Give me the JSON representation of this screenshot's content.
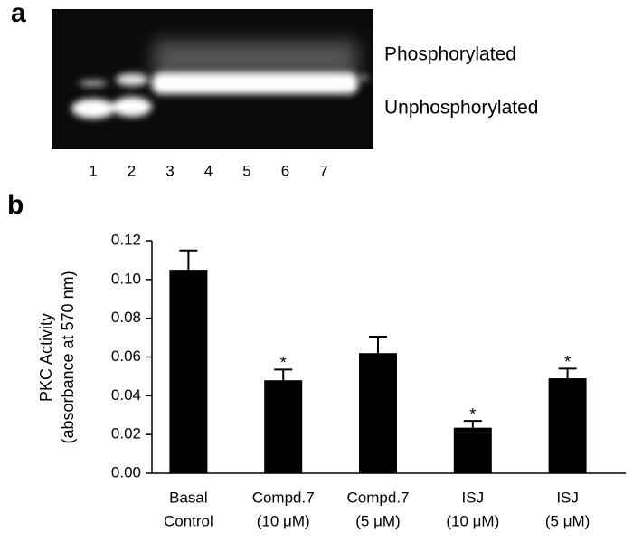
{
  "panel_labels": [
    "a",
    "b"
  ],
  "gel": {
    "band_labels": [
      "Phosphorylated",
      "Unphosphorylated"
    ],
    "lanes": [
      "1",
      "2",
      "3",
      "4",
      "5",
      "6",
      "7"
    ]
  },
  "chart_data": {
    "type": "bar",
    "ylabel": [
      "PKC Activity",
      "(absorbance at 570 nm)"
    ],
    "categories": [
      [
        "Basal",
        "Control"
      ],
      [
        "Compd.7",
        "(10 μM)"
      ],
      [
        "Compd.7",
        "(5 μM)"
      ],
      [
        "ISJ",
        "(10 μM)"
      ],
      [
        "ISJ",
        "(5 μM)"
      ]
    ],
    "values": [
      0.105,
      0.048,
      0.062,
      0.0235,
      0.049
    ],
    "errors": [
      0.01,
      0.0055,
      0.0085,
      0.0035,
      0.005
    ],
    "significance": [
      null,
      "*",
      null,
      "*",
      "*"
    ],
    "color": "#000000",
    "ylim": [
      0,
      0.12
    ],
    "yticks": [
      {
        "value": 0,
        "label": "0.00"
      },
      0.02,
      0.04,
      0.06,
      0.08,
      {
        "value": 0.1,
        "label": "0.10"
      },
      0.12
    ]
  }
}
